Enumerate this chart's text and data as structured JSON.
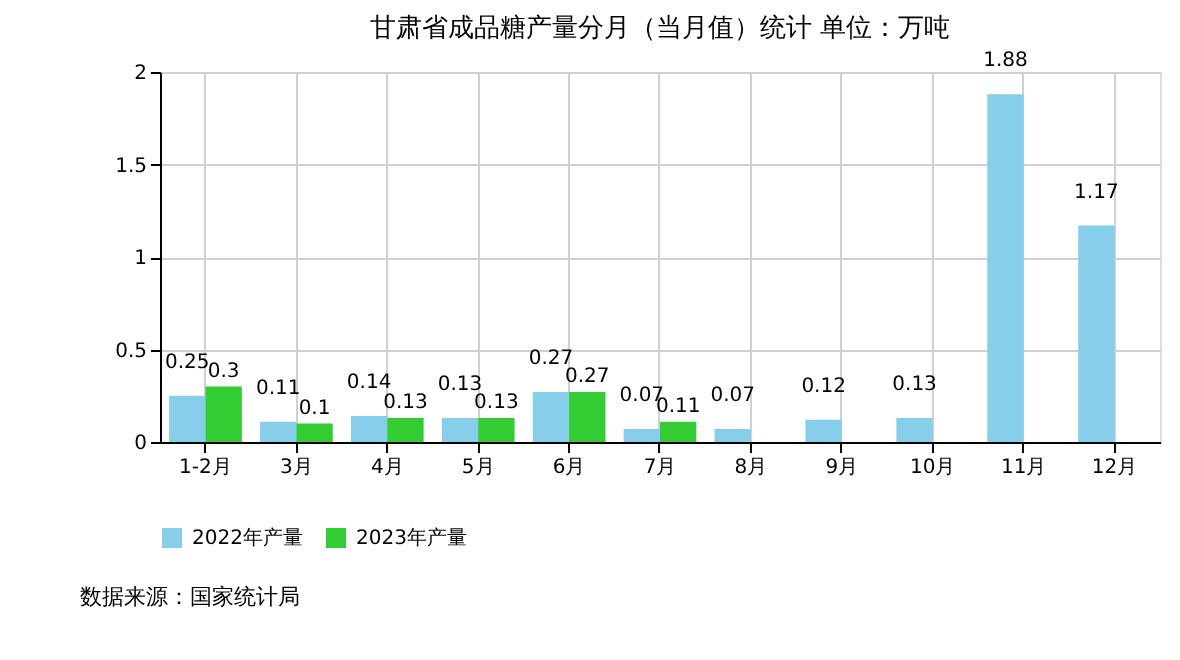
{
  "chart_data": {
    "type": "bar",
    "title": "甘肃省成品糖产量分月（当月值）统计 单位：万吨",
    "categories": [
      "1-2月",
      "3月",
      "4月",
      "5月",
      "6月",
      "7月",
      "8月",
      "9月",
      "10月",
      "11月",
      "12月"
    ],
    "series": [
      {
        "name": "2022年产量",
        "color": "#87ceeb",
        "values": [
          0.25,
          0.11,
          0.14,
          0.13,
          0.27,
          0.07,
          0.07,
          0.12,
          0.13,
          1.88,
          1.17
        ]
      },
      {
        "name": "2023年产量",
        "color": "#33cc33",
        "values": [
          0.3,
          0.1,
          0.13,
          0.13,
          0.27,
          0.11,
          null,
          null,
          null,
          null,
          null
        ]
      }
    ],
    "ylim": [
      0,
      2
    ],
    "yticks": [
      0,
      0.5,
      1,
      1.5,
      2
    ],
    "grid": true,
    "legend": "bottom",
    "data_labels": true,
    "annotations": [
      "数据来源：国家统计局"
    ]
  }
}
